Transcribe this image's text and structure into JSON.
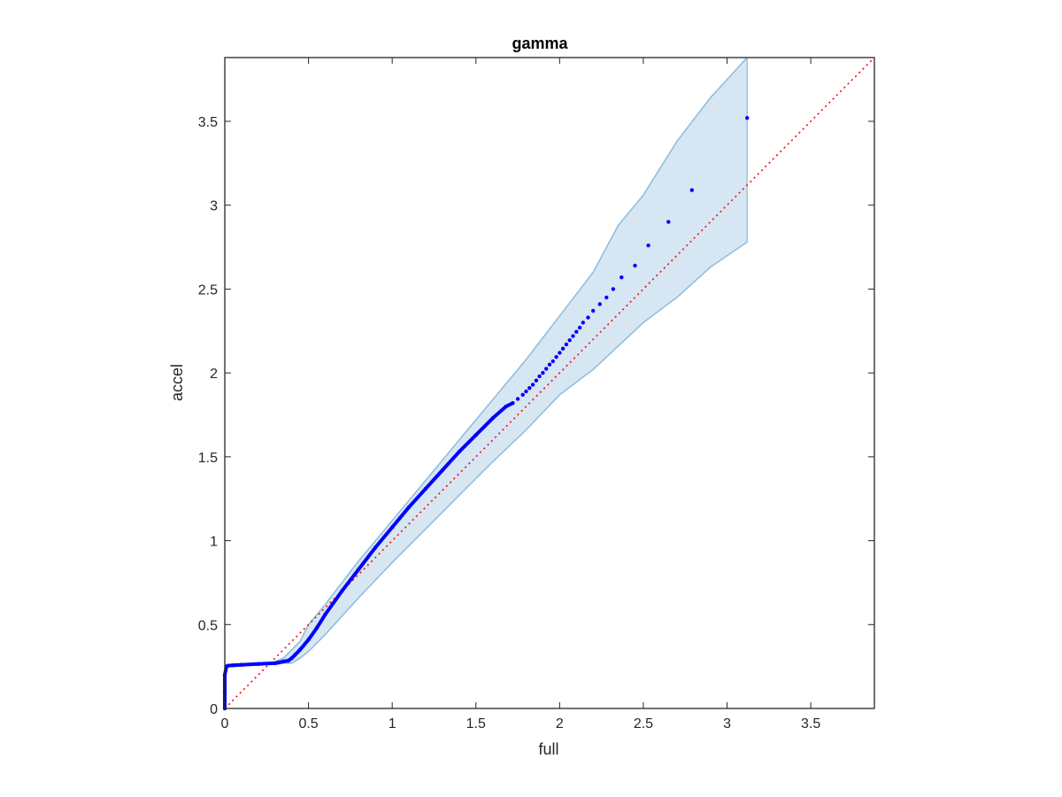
{
  "chart_data": {
    "type": "scatter",
    "title": "gamma",
    "xlabel": "full",
    "ylabel": "accel",
    "xlim": [
      0,
      3.88
    ],
    "ylim": [
      0,
      3.88
    ],
    "xticks": [
      0,
      0.5,
      1,
      1.5,
      2,
      2.5,
      3,
      3.5
    ],
    "yticks": [
      0,
      0.5,
      1,
      1.5,
      2,
      2.5,
      3,
      3.5
    ],
    "xtick_labels": [
      "0",
      "0.5",
      "1",
      "1.5",
      "2",
      "2.5",
      "3",
      "3.5"
    ],
    "ytick_labels": [
      "0",
      "0.5",
      "1",
      "1.5",
      "2",
      "2.5",
      "3",
      "3.5"
    ],
    "grid": false,
    "colors": {
      "points": "#0000ff",
      "reference_line": "#ff0000",
      "band_fill": "#d6e6f3",
      "band_edge": "#8cbcdc",
      "axes": "#262626"
    },
    "series": [
      {
        "type": "scatter",
        "x": [
          0,
          0,
          0,
          0.01,
          0.02,
          0.05,
          0.1,
          0.2,
          0.3,
          0.35,
          0.38,
          0.4,
          0.42,
          0.45,
          0.5,
          0.55,
          0.6,
          0.7,
          0.8,
          0.9,
          1.0,
          1.1,
          1.2,
          1.3,
          1.4,
          1.5,
          1.6,
          1.68,
          1.72,
          1.75,
          1.78,
          1.8,
          1.82,
          1.84,
          1.86,
          1.88,
          1.9,
          1.92,
          1.94,
          1.96,
          1.98,
          2.0,
          2.02,
          2.04,
          2.06,
          2.08,
          2.1,
          2.12,
          2.14,
          2.17,
          2.2,
          2.24,
          2.28,
          2.32,
          2.37,
          2.45,
          2.53,
          2.65,
          2.79,
          3.12
        ],
        "y": [
          0,
          0.1,
          0.2,
          0.25,
          0.255,
          0.257,
          0.26,
          0.265,
          0.27,
          0.28,
          0.285,
          0.3,
          0.32,
          0.35,
          0.41,
          0.48,
          0.56,
          0.7,
          0.83,
          0.96,
          1.08,
          1.2,
          1.31,
          1.42,
          1.53,
          1.63,
          1.73,
          1.8,
          1.82,
          1.845,
          1.87,
          1.89,
          1.91,
          1.93,
          1.955,
          1.98,
          2.0,
          2.025,
          2.05,
          2.07,
          2.095,
          2.12,
          2.145,
          2.17,
          2.195,
          2.22,
          2.245,
          2.27,
          2.3,
          2.33,
          2.37,
          2.41,
          2.45,
          2.5,
          2.57,
          2.64,
          2.76,
          2.9,
          3.09,
          3.52
        ]
      },
      {
        "type": "reference_line",
        "x": [
          0,
          3.88
        ],
        "y": [
          0,
          3.88
        ]
      },
      {
        "type": "band",
        "x": [
          0.3,
          0.35,
          0.4,
          0.45,
          0.5,
          0.6,
          0.7,
          0.8,
          1.0,
          1.2,
          1.4,
          1.6,
          1.8,
          2.0,
          2.2,
          2.35,
          2.5,
          2.7,
          2.9,
          3.12
        ],
        "lower": [
          0.26,
          0.27,
          0.27,
          0.3,
          0.34,
          0.44,
          0.55,
          0.66,
          0.87,
          1.07,
          1.27,
          1.47,
          1.66,
          1.87,
          2.02,
          2.16,
          2.3,
          2.45,
          2.63,
          2.78
        ],
        "upper": [
          0.28,
          0.3,
          0.35,
          0.4,
          0.5,
          0.62,
          0.75,
          0.88,
          1.12,
          1.36,
          1.6,
          1.84,
          2.08,
          2.34,
          2.6,
          2.88,
          3.06,
          3.38,
          3.64,
          3.88
        ]
      }
    ]
  }
}
